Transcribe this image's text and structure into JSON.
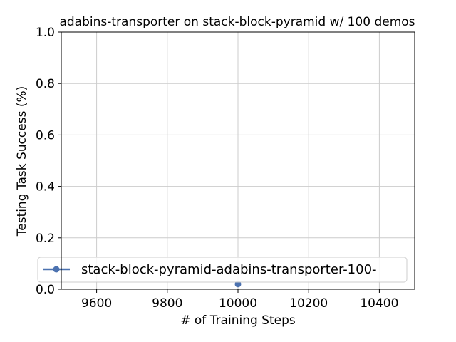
{
  "chart_data": {
    "type": "line",
    "title": "adabins-transporter on stack-block-pyramid w/ 100 demos",
    "xlabel": "# of Training Steps",
    "ylabel": "Testing Task Success (%)",
    "xlim": [
      9500,
      10500
    ],
    "ylim": [
      0.0,
      1.0
    ],
    "xticks": [
      "9600",
      "9800",
      "10000",
      "10200",
      "10400"
    ],
    "xtick_values": [
      9600,
      9800,
      10000,
      10200,
      10400
    ],
    "yticks": [
      "0.0",
      "0.2",
      "0.4",
      "0.6",
      "0.8",
      "1.0"
    ],
    "ytick_values": [
      0.0,
      0.2,
      0.4,
      0.6,
      0.8,
      1.0
    ],
    "grid": true,
    "legend_position": "lower-center",
    "series": [
      {
        "name": "stack-block-pyramid-adabins-transporter-100-",
        "color": "#4c72b0",
        "marker": "circle",
        "x": [
          10000
        ],
        "y": [
          0.02
        ]
      }
    ]
  }
}
